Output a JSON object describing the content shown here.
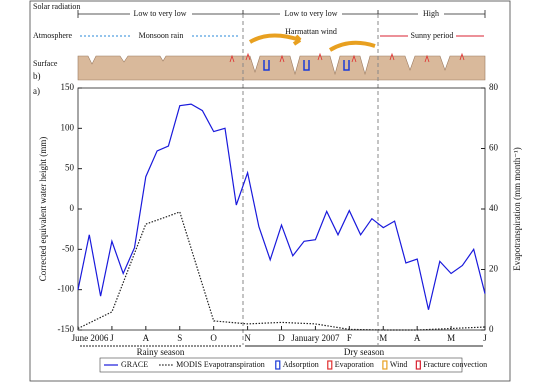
{
  "chart_data": {
    "type": "line",
    "panel_labels": [
      "a)",
      "b)"
    ],
    "ylabel": "Corrected equivalent water height (mm)",
    "y2label": "Evapotranspiration (mm month⁻¹)",
    "x_tick_labels": [
      "June 2006",
      "J",
      "A",
      "S",
      "O",
      "N",
      "D",
      "January 2007",
      "F",
      "M",
      "A",
      "M",
      "J"
    ],
    "ylim": [
      -150,
      150
    ],
    "yticks": [
      -150,
      -100,
      -50,
      0,
      50,
      100,
      150
    ],
    "y2lim": [
      0,
      80
    ],
    "y2ticks": [
      0,
      20,
      40,
      60,
      80
    ],
    "series": [
      {
        "name": "GRACE",
        "color": "#1a1adc",
        "values": [
          -100,
          -32,
          -108,
          -40,
          -80,
          -48,
          40,
          72,
          78,
          128,
          130,
          122,
          96,
          100,
          5,
          45,
          -22,
          -63,
          -20,
          -58,
          -40,
          -38,
          -3,
          -32,
          -2,
          -32,
          -12,
          -23,
          -15,
          -67,
          -62,
          -125,
          -65,
          -80,
          -70,
          -50,
          -105
        ]
      },
      {
        "name": "MODIS Evapotranspiration",
        "color": "#222222",
        "axis": "y2",
        "values": [
          0.5,
          6,
          35,
          39,
          3,
          2,
          2.5,
          2,
          0.2,
          0,
          0,
          0.5,
          1
        ]
      }
    ],
    "seasons": [
      "Rainy season",
      "Dry season"
    ],
    "symbols": [
      "Adsorption",
      "Evaporation",
      "Wind",
      "Fracture convection"
    ]
  },
  "schematic": {
    "row_labels": [
      "Solar radiation",
      "Atmosphere",
      "Surface"
    ],
    "solar": [
      "Low to very low",
      "Low to very low",
      "High"
    ],
    "atmosphere": [
      "Monsoon rain",
      "Harmattan wind",
      "Sunny period"
    ]
  }
}
